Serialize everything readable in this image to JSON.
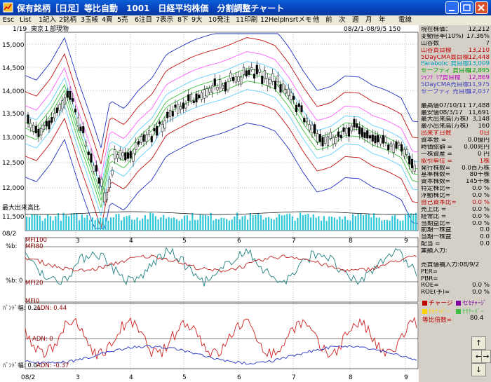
{
  "window": {
    "title": "保有銘柄［日足］等比自動　1001　日経平均株価　分割調整チャート",
    "buttons": [
      "minimize-button",
      "maximize-button",
      "close-button"
    ]
  },
  "menu": [
    "Esc",
    "List",
    "1記入",
    "2銘柄",
    "3玉帳",
    "4買",
    "5売",
    "6注目",
    "7表示",
    "8下",
    "9大",
    "10発注",
    "11印刷",
    "12Help",
    "Insrtメモ",
    "他",
    "前",
    "次",
    "週",
    "月",
    "年",
    "電線"
  ],
  "chart": {
    "header_left": "1/19",
    "market": "東京１部現物",
    "period": "08/2/1-08/9/5 150",
    "date_tag": "08/2",
    "volume_label": "最大出来高比",
    "y_ticks": [
      "15,000",
      "14,500",
      "14,000",
      "13,500",
      "13,000",
      "12,500",
      "12,000",
      "11,500"
    ],
    "x_ticks": [
      "3",
      "4",
      "5",
      "6",
      "7",
      "8",
      "9"
    ],
    "bottom_date": "08/2",
    "panels": {
      "mfi": {
        "label_top": "MFI100",
        "label_80": "MFI80",
        "label_20": "MFI20",
        "label_0": "MFI0",
        "axis_label": "%b:",
        "axis_label2": "%b: 0"
      },
      "adn": {
        "label_top": "ﾊﾞﾝﾄﾞ幅: 0.21",
        "label_top2": "ADN: 0.44",
        "label_mid": "ADN: 0",
        "label_bottom": "ﾊﾞﾝﾄﾞ幅: 0.0",
        "label_bottom2": "ADN: -0.37"
      }
    }
  },
  "side": {
    "rows": [
      {
        "l": "現在株価：",
        "v": "12,212",
        "c": "#000"
      },
      {
        "l": "変動倍率(10%)",
        "v": "17.36%",
        "c": "#000"
      },
      {
        "l": "山谷数",
        "v": "7",
        "c": "#000"
      },
      {
        "l": "山谷買目標",
        "v": "13,210",
        "c": "#c00000"
      },
      {
        "l": "5DayCMA買目標",
        "v": "12,448",
        "c": "#c00000"
      },
      {
        "l": "Parabolic 買目標",
        "v": "13,009",
        "c": "#00a0c0"
      },
      {
        "l": "セーフティ 買目標",
        "v": "12,895",
        "c": "#00a000"
      },
      {
        "l": "ｼｬﾝﾃﾞﾘｱ買目標",
        "v": "12,869",
        "c": "#c000c0"
      },
      {
        "l": "5DayCMA売目標",
        "v": "11,975",
        "c": "#4040c0"
      },
      {
        "l": "セーフティ 売目標",
        "v": "12,037",
        "c": "#4040c0"
      },
      {
        "l": "",
        "v": "",
        "c": "#000"
      },
      {
        "l": "最高値07/10/11",
        "v": "17,488",
        "c": "#000"
      },
      {
        "l": "最安値08/3/17",
        "v": "11,691",
        "c": "#000"
      },
      {
        "l": "最大出来高(万株)",
        "v": "3,148",
        "c": "#000"
      },
      {
        "l": "最小出来高(万株)",
        "v": "160",
        "c": "#000"
      },
      {
        "l": "出来ず日数",
        "v": "0日",
        "c": "#c00000"
      },
      {
        "l": "資本金 =",
        "v": "0.0億円",
        "c": "#000"
      },
      {
        "l": "時価総額 =",
        "v": "0.00兆円",
        "c": "#000"
      },
      {
        "l": "一株資産 =",
        "v": "0 円",
        "c": "#000"
      },
      {
        "l": "取引単位 =",
        "v": "1株",
        "c": "#c00000"
      },
      {
        "l": "発行株数=",
        "v": "0.0百万株",
        "c": "#000"
      },
      {
        "l": "基準株数=",
        "v": "80千株",
        "c": "#000"
      },
      {
        "l": "資本株数=",
        "v": "145千株",
        "c": "#000"
      },
      {
        "l": "特定株比=",
        "v": "0.0 %",
        "c": "#000"
      },
      {
        "l": "浮動株比=",
        "v": "0.0 %",
        "c": "#000"
      },
      {
        "l": "自己資本比=",
        "v": "0.0 %",
        "c": "#c00000"
      },
      {
        "l": "売上比 =",
        "v": "0.0 %",
        "c": "#000"
      },
      {
        "l": "経常比 =",
        "v": "0.0 %",
        "c": "#000"
      },
      {
        "l": "当期益比=",
        "v": "0.0 %",
        "c": "#000"
      },
      {
        "l": "前期一株益",
        "v": "0.0",
        "c": "#000"
      },
      {
        "l": "当期一株益",
        "v": "0.0",
        "c": "#000"
      },
      {
        "l": "配当 =",
        "v": "0.0",
        "c": "#000"
      },
      {
        "l": "業績入力:",
        "v": "",
        "c": "#000"
      },
      {
        "l": "",
        "v": "",
        "c": "#000"
      },
      {
        "l": "売買値補入力:08/9/2",
        "v": "",
        "c": "#000"
      },
      {
        "l": "PER=",
        "v": "",
        "c": "#000"
      },
      {
        "l": "PBR=",
        "v": "",
        "c": "#000"
      },
      {
        "l": "ROE=",
        "v": "0.0 %",
        "c": "#000"
      },
      {
        "l": "ROE(予)=",
        "v": "0.0 %",
        "c": "#000"
      }
    ],
    "legend": [
      {
        "label": "チャージ",
        "color": "#c00000"
      },
      {
        "label": "セｾﾁｬｰｼﾞ",
        "color": "#8000a0"
      },
      {
        "label": "ｾｾﾁｰﾊﾟｰ",
        "color": "#ffd000"
      },
      {
        "label": "ｾｾﾁｰﾊﾞｰ",
        "color": "#40c040"
      }
    ],
    "ratio_label": "等比倍数=",
    "ratio_value": "80.4"
  },
  "nav": {
    "up": "↑",
    "left": "←",
    "right": "→",
    "down": "↓"
  }
}
